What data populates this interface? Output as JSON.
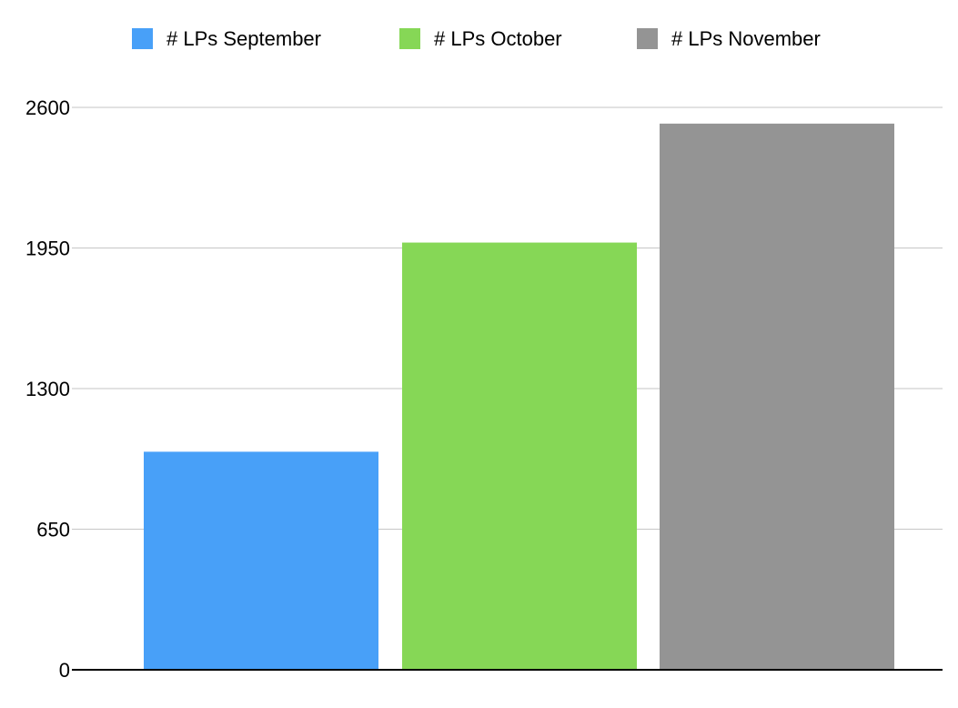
{
  "chart_data": {
    "type": "bar",
    "title": "",
    "xlabel": "",
    "ylabel": "",
    "categories": [
      ""
    ],
    "series": [
      {
        "name": "# LPs September",
        "values": [
          1008
        ],
        "color": "#48a0f8"
      },
      {
        "name": "# LPs October",
        "values": [
          1975
        ],
        "color": "#86d756"
      },
      {
        "name": "# LPs November",
        "values": [
          2525
        ],
        "color": "#949494"
      }
    ],
    "ylim": [
      0,
      2600
    ],
    "yticks": [
      0,
      650,
      1300,
      1950,
      2600
    ],
    "grid": true,
    "legend_position": "top"
  }
}
